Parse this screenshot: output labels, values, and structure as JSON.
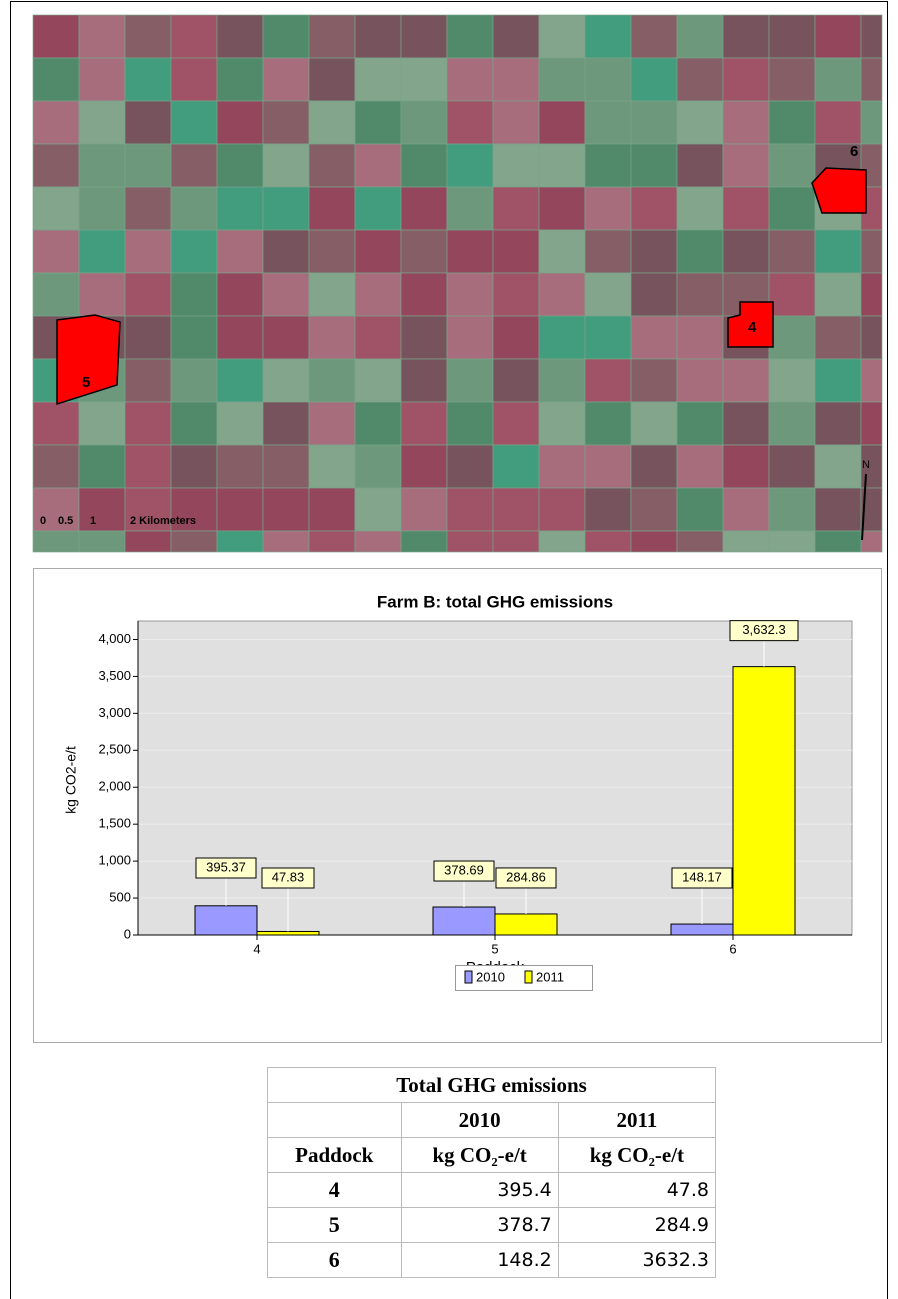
{
  "map": {
    "labels": [
      "6",
      "4",
      "5"
    ],
    "scale": [
      "0",
      "0.5",
      "1",
      "2 Kilometers"
    ],
    "north": "N"
  },
  "chart_data": {
    "type": "bar",
    "title": "Farm B: total GHG emissions",
    "x_label": "Paddock",
    "y_label": "kg CO2-e/t",
    "categories": [
      "4",
      "5",
      "6"
    ],
    "series": [
      {
        "name": "2010",
        "color": "#9999ff",
        "values": [
          395.37,
          378.69,
          148.17
        ]
      },
      {
        "name": "2011",
        "color": "#ffff00",
        "values": [
          47.83,
          284.86,
          3632.3
        ],
        "value_labels": [
          "47.83",
          "284.86",
          "3,632.3"
        ]
      }
    ],
    "ylim": [
      0,
      4250
    ],
    "yticks": [
      0,
      500,
      {
        "value": 1000,
        "label": "1,000"
      },
      {
        "value": 1500,
        "label": "1,500"
      },
      {
        "value": 2000,
        "label": "2,000"
      },
      {
        "value": 2500,
        "label": "2,500"
      },
      {
        "value": 3000,
        "label": "3,000"
      },
      {
        "value": 3500,
        "label": "3,500"
      },
      {
        "value": 4000,
        "label": "4,000"
      }
    ],
    "grid": true,
    "legend": "bottom"
  },
  "table": {
    "title": "Total GHG emissions",
    "header": [
      [
        "",
        "2010",
        "2011"
      ],
      [
        "Paddock",
        "kg CO₂-e/t",
        "kg CO₂-e/t"
      ]
    ],
    "rows": [
      [
        4,
        395.4,
        47.8
      ],
      [
        5,
        378.7,
        284.9
      ],
      [
        6,
        148.2,
        3632.3
      ]
    ]
  }
}
